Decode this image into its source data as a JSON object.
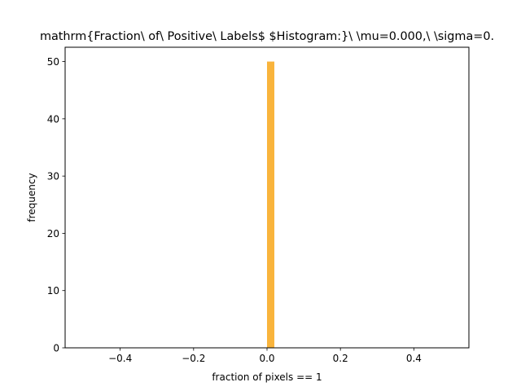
{
  "chart_data": {
    "type": "bar",
    "title": "mathrm{Fraction\\ of\\ Positive\\ Labels$ $Histogram:}\\ \\mu=0.000,\\ \\sigma=0.",
    "xlabel": "fraction of pixels == 1",
    "ylabel": "frequency",
    "xlim": [
      -0.55,
      0.55
    ],
    "ylim": [
      0,
      52.5
    ],
    "x_ticks": [
      -0.4,
      -0.2,
      0.0,
      0.2,
      0.4
    ],
    "x_tick_labels": [
      "−0.4",
      "−0.2",
      "0.0",
      "0.2",
      "0.4"
    ],
    "y_ticks": [
      0,
      10,
      20,
      30,
      40,
      50
    ],
    "y_tick_labels": [
      "0",
      "10",
      "20",
      "30",
      "40",
      "50"
    ],
    "bars": [
      {
        "x_start": 0.0,
        "x_end": 0.02,
        "value": 50
      }
    ],
    "bar_color": "#f9b43c",
    "grid": false
  }
}
